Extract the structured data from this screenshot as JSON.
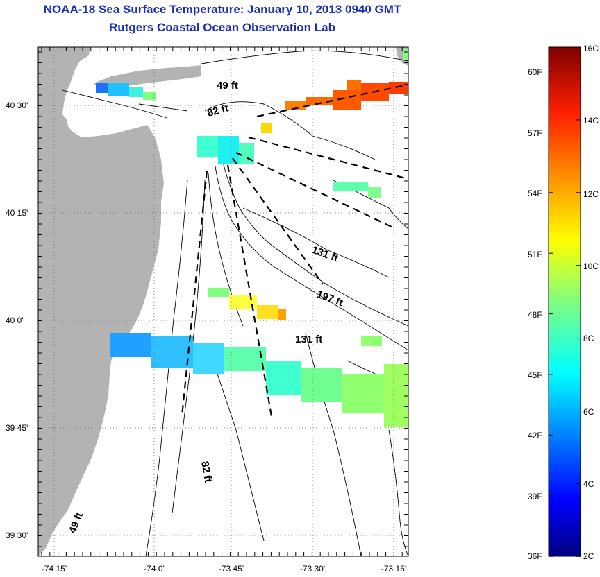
{
  "title": {
    "line1": "NOAA-18 Sea Surface Temperature:  January 10, 2013 0940 GMT",
    "line2": "Rutgers Coastal Ocean Observation Lab"
  },
  "map": {
    "lat_ticks": [
      "40 30'",
      "40 15'",
      "40 0'",
      "39 45'",
      "39 30'"
    ],
    "lon_ticks": [
      "-74 15'",
      "-74 0'",
      "-73 45'",
      "-73 30'",
      "-73 15'"
    ],
    "depth_labels": {
      "d49_north": "49 ft",
      "d82_north": "82 ft",
      "d131_a": "131 ft",
      "d197": "197 ft",
      "d131_b": "131 ft",
      "d82_south": "82 ft",
      "d49_south": "49 ft"
    },
    "land_color": "#b3b3b3"
  },
  "colorbar": {
    "celsius_labels": [
      "16C",
      "14C",
      "12C",
      "10C",
      "8C",
      "6C",
      "4C",
      "2C"
    ],
    "fahrenheit_labels": [
      "60F",
      "57F",
      "54F",
      "51F",
      "48F",
      "45F",
      "42F",
      "39F",
      "36F"
    ],
    "colors": [
      "#00007f",
      "#0000ff",
      "#007fff",
      "#00ffff",
      "#7fff7f",
      "#ffff00",
      "#ff7f00",
      "#ff0000",
      "#7f0000"
    ]
  }
}
